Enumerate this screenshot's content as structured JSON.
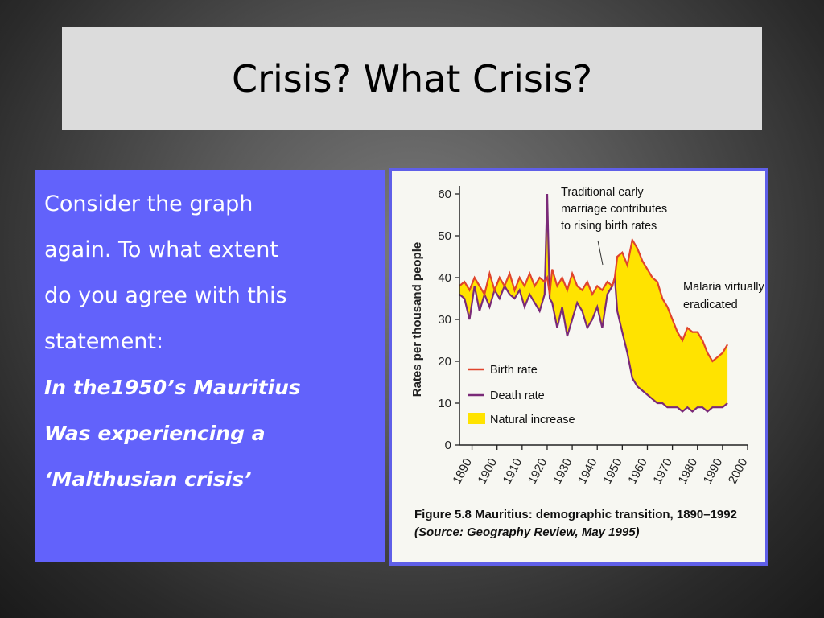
{
  "slide": {
    "title": "Crisis? What Crisis?",
    "body_lines": [
      "Consider the graph",
      "again. To what extent",
      "do you agree with this",
      "statement:"
    ],
    "statement_lines": [
      "In the1950’s Mauritius",
      "Was experiencing a",
      "‘Malthusian crisis’"
    ],
    "colors": {
      "title_bg": "#dcdcdc",
      "text_box_bg": "#6262fb",
      "figure_border": "#5f5fe8"
    }
  },
  "figure": {
    "caption_prefix": "Figure 5.8  Mauritius: demographic transition, 1890–1992",
    "caption_source": "(Source: Geography Review, May 1995)"
  },
  "chart_data": {
    "type": "line",
    "ylabel": "Rates per thousand people",
    "xlabel": "",
    "xlim": [
      1885,
      2000
    ],
    "ylim": [
      0,
      60
    ],
    "x_ticks": [
      "1890",
      "1900",
      "1910",
      "1920",
      "1930",
      "1940",
      "1950",
      "1960",
      "1970",
      "1980",
      "1990",
      "2000"
    ],
    "y_ticks": [
      "0",
      "10",
      "20",
      "30",
      "40",
      "50",
      "60"
    ],
    "colors": {
      "birth": "#e0442c",
      "death": "#7a2a78",
      "fill": "#ffe300"
    },
    "legend": [
      "Birth rate",
      "Death rate",
      "Natural increase"
    ],
    "annotations": [
      "Traditional early",
      "marriage contributes",
      "to rising birth rates",
      "Malaria virtually",
      "eradicated"
    ],
    "series": [
      {
        "name": "Birth rate",
        "x": [
          1885,
          1887,
          1889,
          1891,
          1893,
          1895,
          1897,
          1899,
          1901,
          1903,
          1905,
          1907,
          1909,
          1911,
          1913,
          1915,
          1917,
          1919,
          1920,
          1921,
          1922,
          1924,
          1926,
          1928,
          1930,
          1932,
          1934,
          1936,
          1938,
          1940,
          1942,
          1944,
          1946,
          1947,
          1948,
          1950,
          1952,
          1954,
          1956,
          1958,
          1960,
          1962,
          1964,
          1966,
          1968,
          1970,
          1972,
          1974,
          1976,
          1978,
          1980,
          1982,
          1984,
          1986,
          1988,
          1990,
          1992
        ],
        "values": [
          38,
          39,
          37,
          40,
          38,
          36,
          41,
          37,
          40,
          38,
          41,
          37,
          40,
          38,
          41,
          38,
          40,
          39,
          40,
          36,
          42,
          38,
          40,
          37,
          41,
          38,
          37,
          39,
          36,
          38,
          37,
          39,
          38,
          40,
          45,
          46,
          43,
          49,
          47,
          44,
          42,
          40,
          39,
          35,
          33,
          30,
          27,
          25,
          28,
          27,
          27,
          25,
          22,
          20,
          21,
          22,
          24
        ]
      },
      {
        "name": "Death rate",
        "x": [
          1885,
          1887,
          1889,
          1891,
          1893,
          1895,
          1897,
          1899,
          1901,
          1903,
          1905,
          1907,
          1909,
          1911,
          1913,
          1915,
          1917,
          1919,
          1920,
          1921,
          1922,
          1924,
          1926,
          1928,
          1930,
          1932,
          1934,
          1936,
          1938,
          1940,
          1942,
          1944,
          1946,
          1947,
          1948,
          1950,
          1952,
          1954,
          1956,
          1958,
          1960,
          1962,
          1964,
          1966,
          1968,
          1970,
          1972,
          1974,
          1976,
          1978,
          1980,
          1982,
          1984,
          1986,
          1988,
          1990,
          1992
        ],
        "values": [
          36,
          35,
          30,
          38,
          32,
          36,
          33,
          37,
          35,
          38,
          36,
          35,
          37,
          33,
          36,
          34,
          32,
          36,
          60,
          35,
          34,
          28,
          33,
          26,
          30,
          34,
          32,
          28,
          30,
          33,
          28,
          36,
          38,
          40,
          32,
          27,
          22,
          16,
          14,
          13,
          12,
          11,
          10,
          10,
          9,
          9,
          9,
          8,
          9,
          8,
          9,
          9,
          8,
          9,
          9,
          9,
          10
        ]
      }
    ]
  }
}
